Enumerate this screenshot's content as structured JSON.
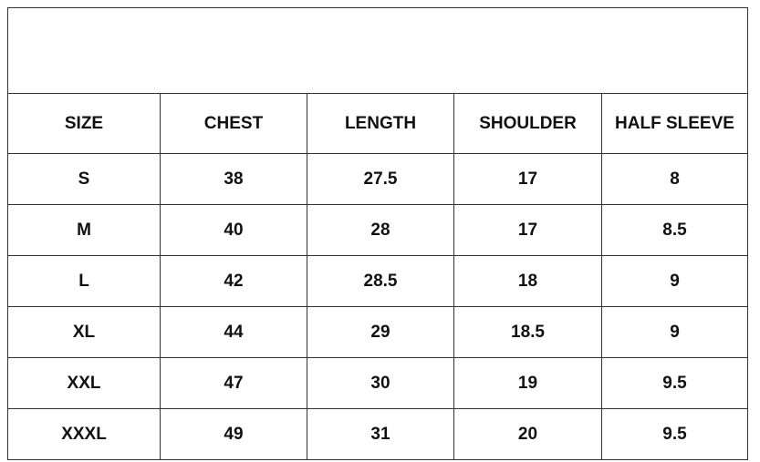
{
  "table": {
    "title": "",
    "headers": [
      "SIZE",
      "CHEST",
      "LENGTH",
      "SHOULDER",
      "HALF SLEEVE"
    ],
    "rows": [
      [
        "S",
        "38",
        "27.5",
        "17",
        "8"
      ],
      [
        "M",
        "40",
        "28",
        "17",
        "8.5"
      ],
      [
        "L",
        "42",
        "28.5",
        "18",
        "9"
      ],
      [
        "XL",
        "44",
        "29",
        "18.5",
        "9"
      ],
      [
        "XXL",
        "47",
        "30",
        "19",
        "9.5"
      ],
      [
        "XXXL",
        "49",
        "31",
        "20",
        "9.5"
      ]
    ]
  }
}
